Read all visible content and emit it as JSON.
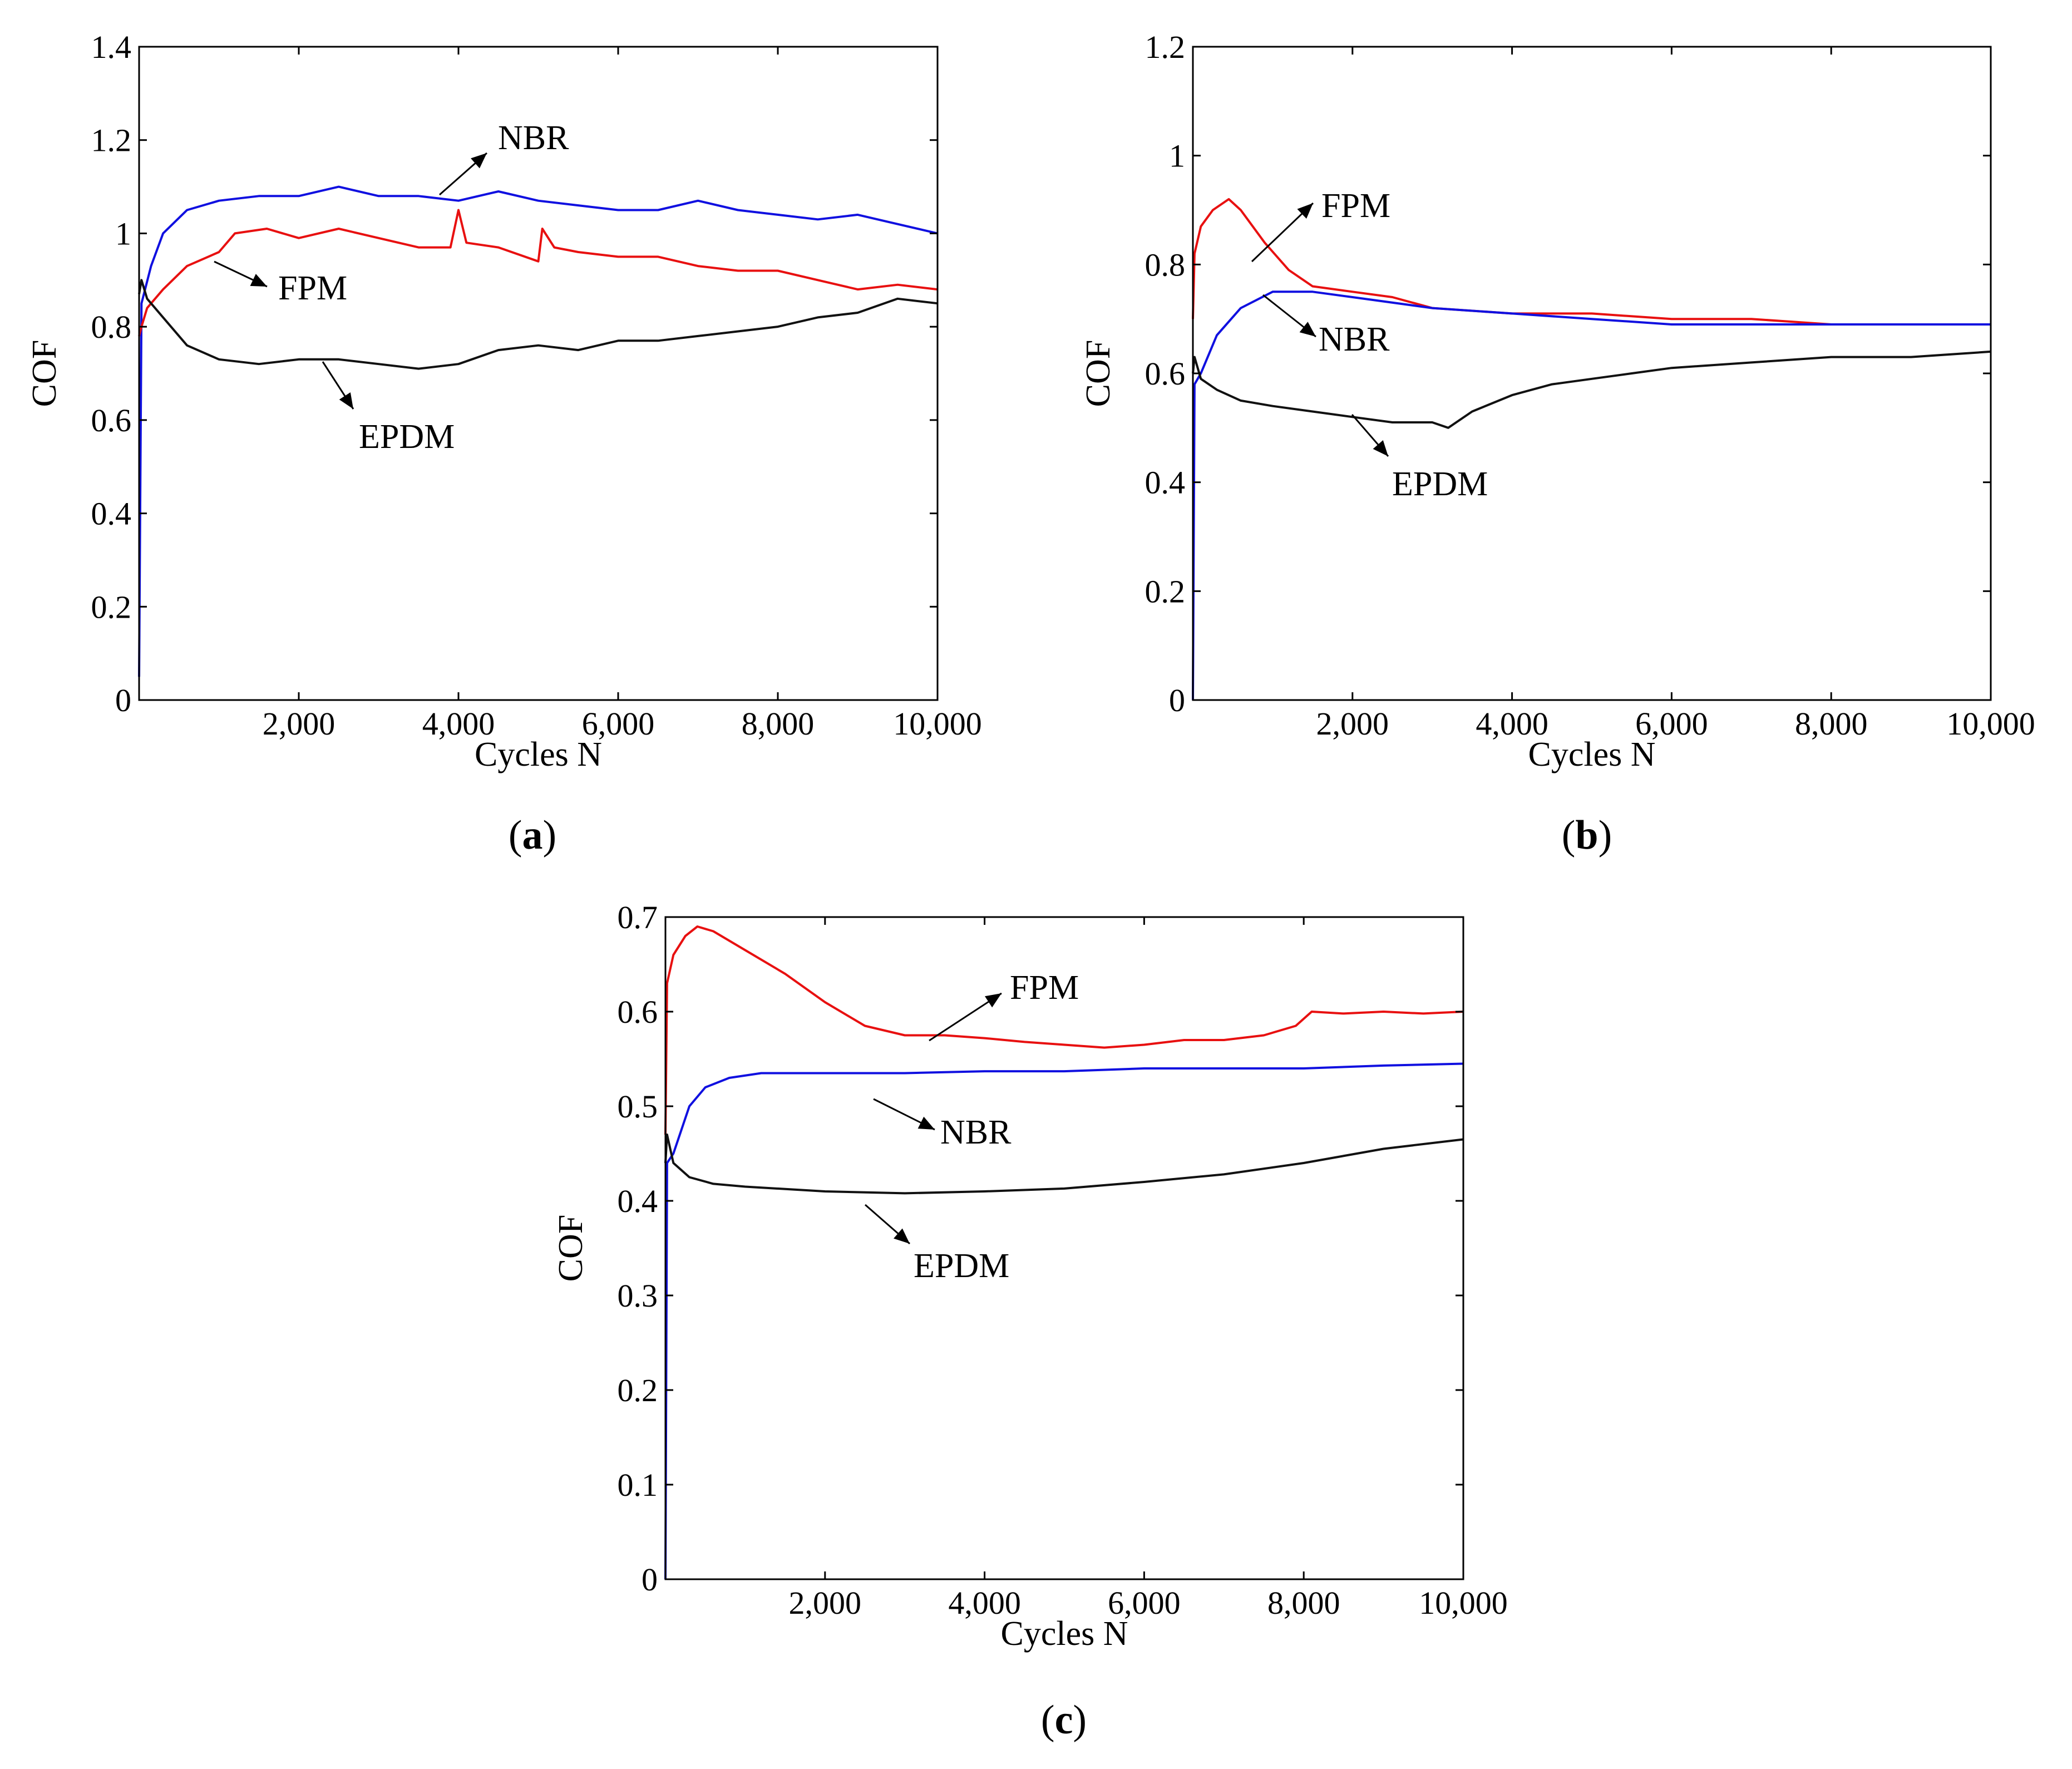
{
  "chart_data": [
    {
      "type": "line",
      "panel": "(a)",
      "panel_letter": "a",
      "xlabel": "Cycles N",
      "ylabel": "COF",
      "xlim": [
        0,
        10000
      ],
      "ylim": [
        0,
        1.4
      ],
      "xticks": [
        2000,
        4000,
        6000,
        8000,
        10000
      ],
      "xtick_labels": [
        "2,000",
        "4,000",
        "6,000",
        "8,000",
        "10,000"
      ],
      "yticks": [
        0,
        0.2,
        0.4,
        0.6,
        0.8,
        1.0,
        1.2,
        1.4
      ],
      "ytick_labels": [
        "0",
        "0.2",
        "0.4",
        "0.6",
        "0.8",
        "1",
        "1.2",
        "1.4"
      ],
      "series": [
        {
          "name": "NBR",
          "color": "#1010e0",
          "x": [
            0,
            30,
            150,
            300,
            600,
            1000,
            1500,
            2000,
            2500,
            3000,
            3500,
            4000,
            4500,
            5000,
            5500,
            6000,
            6500,
            7000,
            7500,
            8000,
            8500,
            9000,
            9500,
            10000
          ],
          "y": [
            0.05,
            0.85,
            0.93,
            1.0,
            1.05,
            1.07,
            1.08,
            1.08,
            1.1,
            1.08,
            1.08,
            1.07,
            1.09,
            1.07,
            1.06,
            1.05,
            1.05,
            1.07,
            1.05,
            1.04,
            1.03,
            1.04,
            1.02,
            1.0
          ]
        },
        {
          "name": "FPM",
          "color": "#e81010",
          "x": [
            0,
            30,
            100,
            300,
            600,
            1000,
            1200,
            1600,
            2000,
            2500,
            3000,
            3500,
            3900,
            4000,
            4100,
            4500,
            5000,
            5050,
            5200,
            5500,
            6000,
            6500,
            7000,
            7500,
            8000,
            8500,
            9000,
            9500,
            10000
          ],
          "y": [
            0.78,
            0.8,
            0.84,
            0.88,
            0.93,
            0.96,
            1.0,
            1.01,
            0.99,
            1.01,
            0.99,
            0.97,
            0.97,
            1.05,
            0.98,
            0.97,
            0.94,
            1.01,
            0.97,
            0.96,
            0.95,
            0.95,
            0.93,
            0.92,
            0.92,
            0.9,
            0.88,
            0.89,
            0.88
          ]
        },
        {
          "name": "EPDM",
          "color": "#111111",
          "x": [
            0,
            30,
            100,
            300,
            600,
            1000,
            1500,
            2000,
            2500,
            3000,
            3500,
            4000,
            4500,
            5000,
            5500,
            6000,
            6500,
            7000,
            7500,
            8000,
            8500,
            9000,
            9500,
            10000
          ],
          "y": [
            0.87,
            0.9,
            0.86,
            0.82,
            0.76,
            0.73,
            0.72,
            0.73,
            0.73,
            0.72,
            0.71,
            0.72,
            0.75,
            0.76,
            0.75,
            0.77,
            0.77,
            0.78,
            0.79,
            0.8,
            0.82,
            0.83,
            0.86,
            0.85
          ]
        }
      ],
      "annotations": [
        "NBR",
        "FPM",
        "EPDM"
      ]
    },
    {
      "type": "line",
      "panel": "(b)",
      "panel_letter": "b",
      "xlabel": "Cycles N",
      "ylabel": "COF",
      "xlim": [
        0,
        10000
      ],
      "ylim": [
        0,
        1.2
      ],
      "xticks": [
        2000,
        4000,
        6000,
        8000,
        10000
      ],
      "xtick_labels": [
        "2,000",
        "4,000",
        "6,000",
        "8,000",
        "10,000"
      ],
      "yticks": [
        0,
        0.2,
        0.4,
        0.6,
        0.8,
        1.0,
        1.2
      ],
      "ytick_labels": [
        "0",
        "0.2",
        "0.4",
        "0.6",
        "0.8",
        "1",
        "1.2"
      ],
      "series": [
        {
          "name": "FPM",
          "color": "#e81010",
          "x": [
            0,
            20,
            100,
            250,
            450,
            600,
            900,
            1200,
            1500,
            2000,
            2500,
            3000,
            4000,
            5000,
            6000,
            7000,
            8000,
            9000,
            10000
          ],
          "y": [
            0.7,
            0.82,
            0.87,
            0.9,
            0.92,
            0.9,
            0.84,
            0.79,
            0.76,
            0.75,
            0.74,
            0.72,
            0.71,
            0.71,
            0.7,
            0.7,
            0.69,
            0.69,
            0.69
          ]
        },
        {
          "name": "NBR",
          "color": "#1010e0",
          "x": [
            0,
            20,
            100,
            300,
            600,
            1000,
            1500,
            2000,
            3000,
            4000,
            5000,
            6000,
            7000,
            8000,
            9000,
            10000
          ],
          "y": [
            0.0,
            0.58,
            0.6,
            0.67,
            0.72,
            0.75,
            0.75,
            0.74,
            0.72,
            0.71,
            0.7,
            0.69,
            0.69,
            0.69,
            0.69,
            0.69
          ]
        },
        {
          "name": "EPDM",
          "color": "#111111",
          "x": [
            0,
            20,
            100,
            300,
            600,
            1000,
            1500,
            2000,
            2500,
            3000,
            3200,
            3500,
            4000,
            4500,
            5000,
            5500,
            6000,
            7000,
            8000,
            9000,
            10000
          ],
          "y": [
            0.6,
            0.63,
            0.59,
            0.57,
            0.55,
            0.54,
            0.53,
            0.52,
            0.51,
            0.51,
            0.5,
            0.53,
            0.56,
            0.58,
            0.59,
            0.6,
            0.61,
            0.62,
            0.63,
            0.63,
            0.64
          ]
        }
      ],
      "annotations": [
        "FPM",
        "NBR",
        "EPDM"
      ]
    },
    {
      "type": "line",
      "panel": "(c)",
      "panel_letter": "c",
      "xlabel": "Cycles N",
      "ylabel": "COF",
      "xlim": [
        0,
        10000
      ],
      "ylim": [
        0,
        0.7
      ],
      "xticks": [
        2000,
        4000,
        6000,
        8000,
        10000
      ],
      "xtick_labels": [
        "2,000",
        "4,000",
        "6,000",
        "8,000",
        "10,000"
      ],
      "yticks": [
        0,
        0.1,
        0.2,
        0.3,
        0.4,
        0.5,
        0.6,
        0.7
      ],
      "ytick_labels": [
        "0",
        "0.1",
        "0.2",
        "0.3",
        "0.4",
        "0.5",
        "0.6",
        "0.7"
      ],
      "series": [
        {
          "name": "FPM",
          "color": "#e81010",
          "x": [
            0,
            20,
            100,
            250,
            400,
            600,
            1000,
            1500,
            2000,
            2500,
            3000,
            3500,
            4000,
            4500,
            5000,
            5500,
            6000,
            6500,
            7000,
            7500,
            7900,
            8100,
            8500,
            9000,
            9500,
            10000
          ],
          "y": [
            0.47,
            0.63,
            0.66,
            0.68,
            0.69,
            0.685,
            0.665,
            0.64,
            0.61,
            0.585,
            0.575,
            0.575,
            0.572,
            0.568,
            0.565,
            0.562,
            0.565,
            0.57,
            0.57,
            0.575,
            0.585,
            0.6,
            0.598,
            0.6,
            0.598,
            0.6
          ]
        },
        {
          "name": "NBR",
          "color": "#1010e0",
          "x": [
            0,
            20,
            100,
            300,
            500,
            800,
            1200,
            2000,
            3000,
            4000,
            5000,
            6000,
            7000,
            8000,
            9000,
            10000
          ],
          "y": [
            0.0,
            0.44,
            0.45,
            0.5,
            0.52,
            0.53,
            0.535,
            0.535,
            0.535,
            0.537,
            0.537,
            0.54,
            0.54,
            0.54,
            0.543,
            0.545
          ]
        },
        {
          "name": "EPDM",
          "color": "#111111",
          "x": [
            0,
            20,
            100,
            300,
            600,
            1000,
            2000,
            3000,
            4000,
            5000,
            6000,
            7000,
            8000,
            9000,
            10000
          ],
          "y": [
            0.44,
            0.47,
            0.44,
            0.425,
            0.418,
            0.415,
            0.41,
            0.408,
            0.41,
            0.413,
            0.42,
            0.428,
            0.44,
            0.455,
            0.465
          ]
        }
      ],
      "annotations": [
        "FPM",
        "NBR",
        "EPDM"
      ]
    }
  ]
}
